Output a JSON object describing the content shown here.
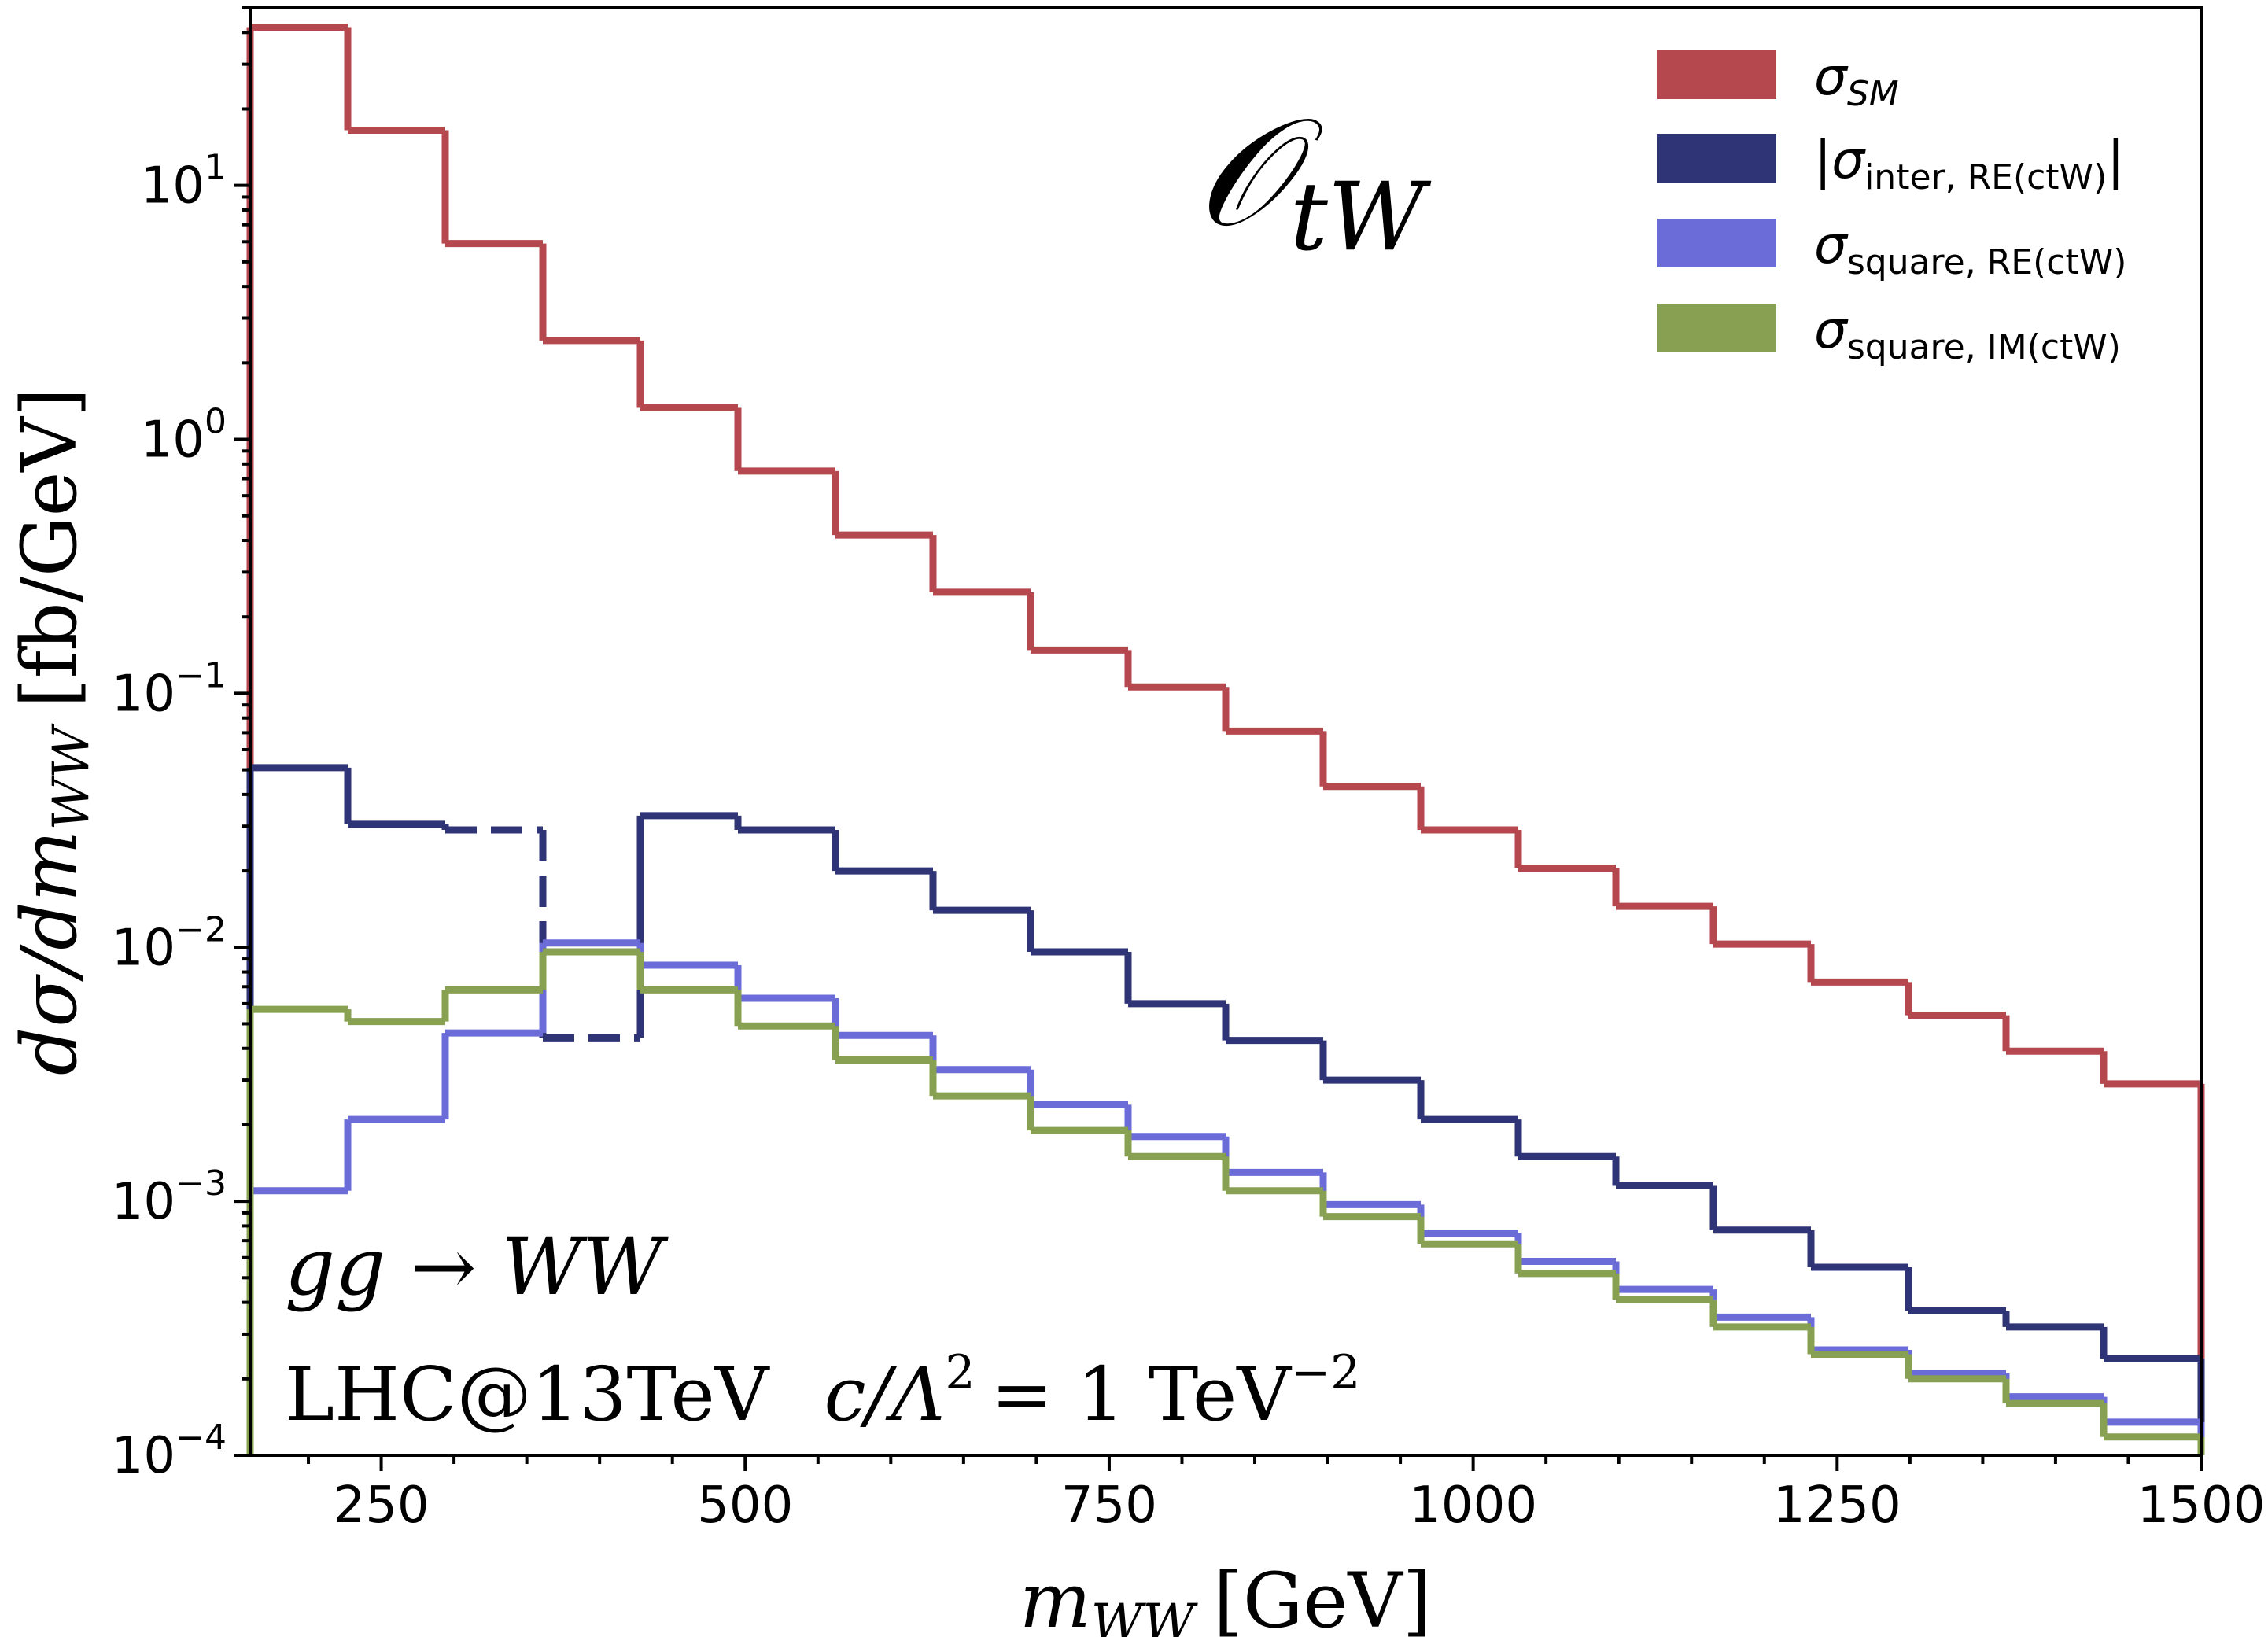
{
  "chart_data": {
    "type": "line",
    "title": "O_tW",
    "title_main": "𝒪",
    "title_sub": "tW",
    "xlabel": "m_WW [GeV]",
    "xlabel_main": "m",
    "xlabel_sub": "WW",
    "xlabel_unit": "[GeV]",
    "ylabel": "dσ/dm_WW [fb/GeV]",
    "ylabel_main": "dσ/dm",
    "ylabel_sub": "WW",
    "ylabel_unit": "[fb/GeV]",
    "xlim": [
      160,
      1500
    ],
    "ylim": [
      0.0001,
      50
    ],
    "yscale": "log",
    "xticks": [
      250,
      500,
      750,
      1000,
      1250,
      1500
    ],
    "xtick_labels": [
      "250",
      "500",
      "750",
      "1000",
      "1250",
      "1500"
    ],
    "yticks": [
      0.0001,
      0.001,
      0.01,
      0.1,
      1,
      10
    ],
    "ytick_labels": [
      {
        "base": "10",
        "exp": "−4"
      },
      {
        "base": "10",
        "exp": "−3"
      },
      {
        "base": "10",
        "exp": "−2"
      },
      {
        "base": "10",
        "exp": "−1"
      },
      {
        "base": "10",
        "exp": "0"
      },
      {
        "base": "10",
        "exp": "1"
      }
    ],
    "bin_edges": [
      160,
      227,
      294,
      361,
      428,
      495,
      562,
      629,
      696,
      763,
      830,
      897,
      964,
      1031,
      1098,
      1165,
      1232,
      1299,
      1366,
      1433,
      1500
    ],
    "series": [
      {
        "legend_label": "σ_SM",
        "legend_main": "σ",
        "legend_sub": "SM",
        "color": "#b5484e",
        "values": [
          42,
          16.5,
          5.9,
          2.45,
          1.33,
          0.75,
          0.42,
          0.25,
          0.148,
          0.106,
          0.071,
          0.043,
          0.029,
          0.0205,
          0.0145,
          0.0103,
          0.0073,
          0.0054,
          0.0039,
          0.0029
        ]
      },
      {
        "legend_label": "|σ_inter, RE(ctW)|",
        "legend_main": "|σ",
        "legend_sub": "inter, RE(ctW)",
        "legend_tail": "|",
        "color": "#2f3477",
        "values": [
          0.051,
          0.0305,
          0.029,
          0.0044,
          0.033,
          0.029,
          0.02,
          0.014,
          0.0096,
          0.006,
          0.0043,
          0.003,
          0.0021,
          0.0015,
          0.00115,
          0.00077,
          0.00055,
          0.00037,
          0.00032,
          0.00024
        ],
        "dashed_bins": [
          2,
          3
        ]
      },
      {
        "legend_label": "σ_square, RE(ctW)",
        "legend_main": "σ",
        "legend_sub": "square, RE(ctW)",
        "color": "#6b6cd8",
        "values": [
          0.0011,
          0.0021,
          0.0046,
          0.0104,
          0.0085,
          0.0063,
          0.0045,
          0.0033,
          0.0024,
          0.0018,
          0.0013,
          0.00097,
          0.00075,
          0.00058,
          0.00045,
          0.00035,
          0.00026,
          0.00021,
          0.00017,
          0.000135
        ]
      },
      {
        "legend_label": "σ_square, IM(ctW)",
        "legend_main": "σ",
        "legend_sub": "square, IM(ctW)",
        "color": "#87a052",
        "values": [
          0.0057,
          0.0051,
          0.0068,
          0.0096,
          0.0068,
          0.0049,
          0.0036,
          0.0026,
          0.0019,
          0.0015,
          0.0011,
          0.00087,
          0.00068,
          0.00052,
          0.00041,
          0.00032,
          0.00025,
          0.0002,
          0.00016,
          0.000118
        ]
      }
    ],
    "legend_position": "top-right",
    "grid": false,
    "annotations": [
      "gg → WW",
      "LHC@13TeV  c/Λ² = 1 TeV⁻²"
    ],
    "annotation_process": {
      "lhs": "gg",
      "arrow": "→",
      "rhs": "WW"
    },
    "annotation_setup": {
      "collider": "LHC@13TeV",
      "coupling": "c/Λ",
      "sq": "2",
      "eq": "= 1 TeV",
      "exp": "−2"
    }
  }
}
